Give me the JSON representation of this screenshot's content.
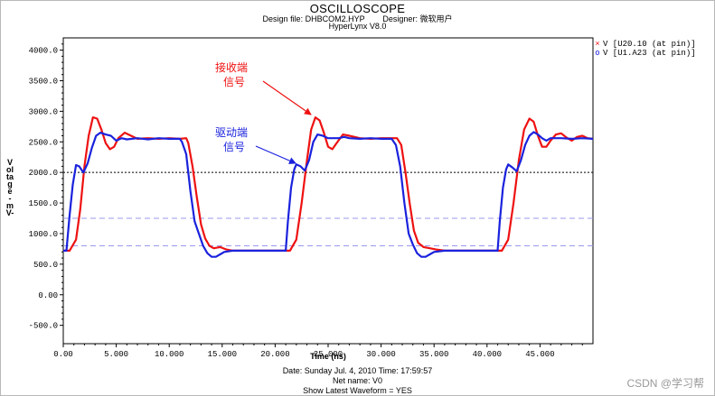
{
  "header": {
    "title": "OSCILLOSCOPE",
    "design_line": "Design file: DHBCOM2.HYP        Designer: 微软用户",
    "tool": "HyperLynx V8.0"
  },
  "footer": {
    "date_line": "Date: Sunday Jul. 4, 2010   Time: 17:59:57",
    "net_line": "Net name: V0",
    "show_line": "Show Latest Waveform = YES"
  },
  "watermark": "CSDN @学习帮",
  "annotations": {
    "receiver": [
      "接收端",
      "信号"
    ],
    "driver": [
      "驱动端",
      "信号"
    ]
  },
  "colors": {
    "receiver": "#ee1111",
    "driver": "#1a22dd",
    "reference": "#000000",
    "threshold": "#9999ee"
  },
  "chart_data": {
    "type": "line",
    "title": "OSCILLOSCOPE",
    "xlabel": "Time  (ns)",
    "ylabel": "Voltage -mV-",
    "xlim": [
      0,
      50
    ],
    "ylim": [
      -800,
      4200
    ],
    "x_ticks": [
      "0.00",
      "5.000",
      "10.000",
      "15.000",
      "20.000",
      "25.000",
      "30.000",
      "35.000",
      "40.000",
      "45.000"
    ],
    "y_ticks": [
      "4000.0",
      "3500.0",
      "3000.0",
      "2500.0",
      "2000.0",
      "1500.0",
      "1000.0",
      "500.0",
      "0.00",
      "-500.0"
    ],
    "reference_lines": [
      {
        "y": 2000,
        "style": "dotted",
        "color": "#000000"
      },
      {
        "y": 1250,
        "style": "dashed",
        "color": "#9999ee"
      },
      {
        "y": 800,
        "style": "dashed",
        "color": "#9999ee"
      }
    ],
    "grid": false,
    "legend_position": "top-right",
    "series": [
      {
        "name": "V [U20.10 (at pin)]",
        "marker": "x",
        "color": "#ee1111",
        "points": [
          [
            0,
            720
          ],
          [
            0.6,
            720
          ],
          [
            1.2,
            900
          ],
          [
            1.6,
            1400
          ],
          [
            2,
            2100
          ],
          [
            2.4,
            2600
          ],
          [
            2.8,
            2900
          ],
          [
            3.2,
            2880
          ],
          [
            3.6,
            2700
          ],
          [
            4,
            2480
          ],
          [
            4.4,
            2380
          ],
          [
            4.8,
            2420
          ],
          [
            5.2,
            2560
          ],
          [
            5.8,
            2650
          ],
          [
            6.4,
            2600
          ],
          [
            7,
            2550
          ],
          [
            8,
            2560
          ],
          [
            9,
            2550
          ],
          [
            10,
            2560
          ],
          [
            11,
            2550
          ],
          [
            11.6,
            2560
          ],
          [
            11.8,
            2480
          ],
          [
            12.2,
            2100
          ],
          [
            12.6,
            1600
          ],
          [
            13,
            1150
          ],
          [
            13.4,
            920
          ],
          [
            13.8,
            800
          ],
          [
            14.2,
            760
          ],
          [
            14.8,
            780
          ],
          [
            15.4,
            740
          ],
          [
            16,
            720
          ],
          [
            17,
            720
          ],
          [
            18,
            720
          ],
          [
            19,
            720
          ],
          [
            20,
            720
          ],
          [
            21.4,
            720
          ],
          [
            22,
            900
          ],
          [
            22.5,
            1500
          ],
          [
            23,
            2200
          ],
          [
            23.4,
            2700
          ],
          [
            23.8,
            2900
          ],
          [
            24.2,
            2850
          ],
          [
            24.6,
            2650
          ],
          [
            25,
            2420
          ],
          [
            25.4,
            2380
          ],
          [
            25.8,
            2480
          ],
          [
            26.4,
            2620
          ],
          [
            27,
            2600
          ],
          [
            28,
            2560
          ],
          [
            29,
            2550
          ],
          [
            30,
            2560
          ],
          [
            31.5,
            2560
          ],
          [
            31.9,
            2450
          ],
          [
            32.3,
            2000
          ],
          [
            32.7,
            1500
          ],
          [
            33.1,
            1050
          ],
          [
            33.5,
            850
          ],
          [
            34,
            780
          ],
          [
            34.6,
            760
          ],
          [
            35.2,
            740
          ],
          [
            36,
            720
          ],
          [
            37,
            720
          ],
          [
            38,
            720
          ],
          [
            39,
            720
          ],
          [
            40,
            720
          ],
          [
            41.4,
            720
          ],
          [
            42,
            900
          ],
          [
            42.5,
            1500
          ],
          [
            43,
            2200
          ],
          [
            43.5,
            2700
          ],
          [
            44,
            2880
          ],
          [
            44.4,
            2830
          ],
          [
            44.8,
            2600
          ],
          [
            45.2,
            2420
          ],
          [
            45.6,
            2420
          ],
          [
            46,
            2520
          ],
          [
            46.5,
            2620
          ],
          [
            47,
            2640
          ],
          [
            47.5,
            2570
          ],
          [
            48,
            2520
          ],
          [
            48.5,
            2580
          ],
          [
            49,
            2600
          ],
          [
            49.5,
            2560
          ],
          [
            50,
            2550
          ]
        ]
      },
      {
        "name": "V [U1.A23 (at pin)]",
        "marker": "o",
        "color": "#1a22dd",
        "points": [
          [
            0,
            720
          ],
          [
            0.3,
            720
          ],
          [
            0.6,
            1300
          ],
          [
            0.9,
            1800
          ],
          [
            1.2,
            2120
          ],
          [
            1.5,
            2100
          ],
          [
            1.9,
            2000
          ],
          [
            2.3,
            2150
          ],
          [
            2.7,
            2400
          ],
          [
            3.1,
            2600
          ],
          [
            3.5,
            2650
          ],
          [
            4,
            2620
          ],
          [
            4.5,
            2600
          ],
          [
            5,
            2520
          ],
          [
            5.5,
            2560
          ],
          [
            6,
            2540
          ],
          [
            7,
            2560
          ],
          [
            8,
            2540
          ],
          [
            9,
            2560
          ],
          [
            10,
            2550
          ],
          [
            11,
            2550
          ],
          [
            11.2,
            2500
          ],
          [
            11.6,
            2300
          ],
          [
            12,
            1700
          ],
          [
            12.4,
            1200
          ],
          [
            12.8,
            1000
          ],
          [
            13.2,
            800
          ],
          [
            13.6,
            680
          ],
          [
            14,
            620
          ],
          [
            14.4,
            620
          ],
          [
            14.8,
            660
          ],
          [
            15.2,
            700
          ],
          [
            16,
            720
          ],
          [
            18,
            720
          ],
          [
            20,
            720
          ],
          [
            21,
            720
          ],
          [
            21.2,
            1200
          ],
          [
            21.5,
            1750
          ],
          [
            21.8,
            2050
          ],
          [
            22,
            2130
          ],
          [
            22.4,
            2100
          ],
          [
            22.8,
            2030
          ],
          [
            23.2,
            2200
          ],
          [
            23.6,
            2500
          ],
          [
            24,
            2620
          ],
          [
            24.5,
            2600
          ],
          [
            25,
            2560
          ],
          [
            26,
            2560
          ],
          [
            26.5,
            2580
          ],
          [
            27,
            2560
          ],
          [
            28,
            2550
          ],
          [
            29,
            2560
          ],
          [
            30,
            2550
          ],
          [
            31,
            2550
          ],
          [
            31.4,
            2450
          ],
          [
            31.8,
            2100
          ],
          [
            32.2,
            1500
          ],
          [
            32.6,
            1000
          ],
          [
            33,
            820
          ],
          [
            33.4,
            680
          ],
          [
            33.8,
            620
          ],
          [
            34.2,
            620
          ],
          [
            34.6,
            660
          ],
          [
            35,
            700
          ],
          [
            36,
            720
          ],
          [
            38,
            720
          ],
          [
            40,
            720
          ],
          [
            41,
            720
          ],
          [
            41.2,
            1200
          ],
          [
            41.5,
            1750
          ],
          [
            41.8,
            2050
          ],
          [
            42,
            2130
          ],
          [
            42.4,
            2080
          ],
          [
            42.8,
            2020
          ],
          [
            43.2,
            2200
          ],
          [
            43.6,
            2450
          ],
          [
            44,
            2600
          ],
          [
            44.4,
            2660
          ],
          [
            44.8,
            2620
          ],
          [
            45.2,
            2560
          ],
          [
            45.6,
            2520
          ],
          [
            46,
            2560
          ],
          [
            47,
            2560
          ],
          [
            48,
            2550
          ],
          [
            49,
            2560
          ],
          [
            50,
            2550
          ]
        ]
      }
    ]
  }
}
